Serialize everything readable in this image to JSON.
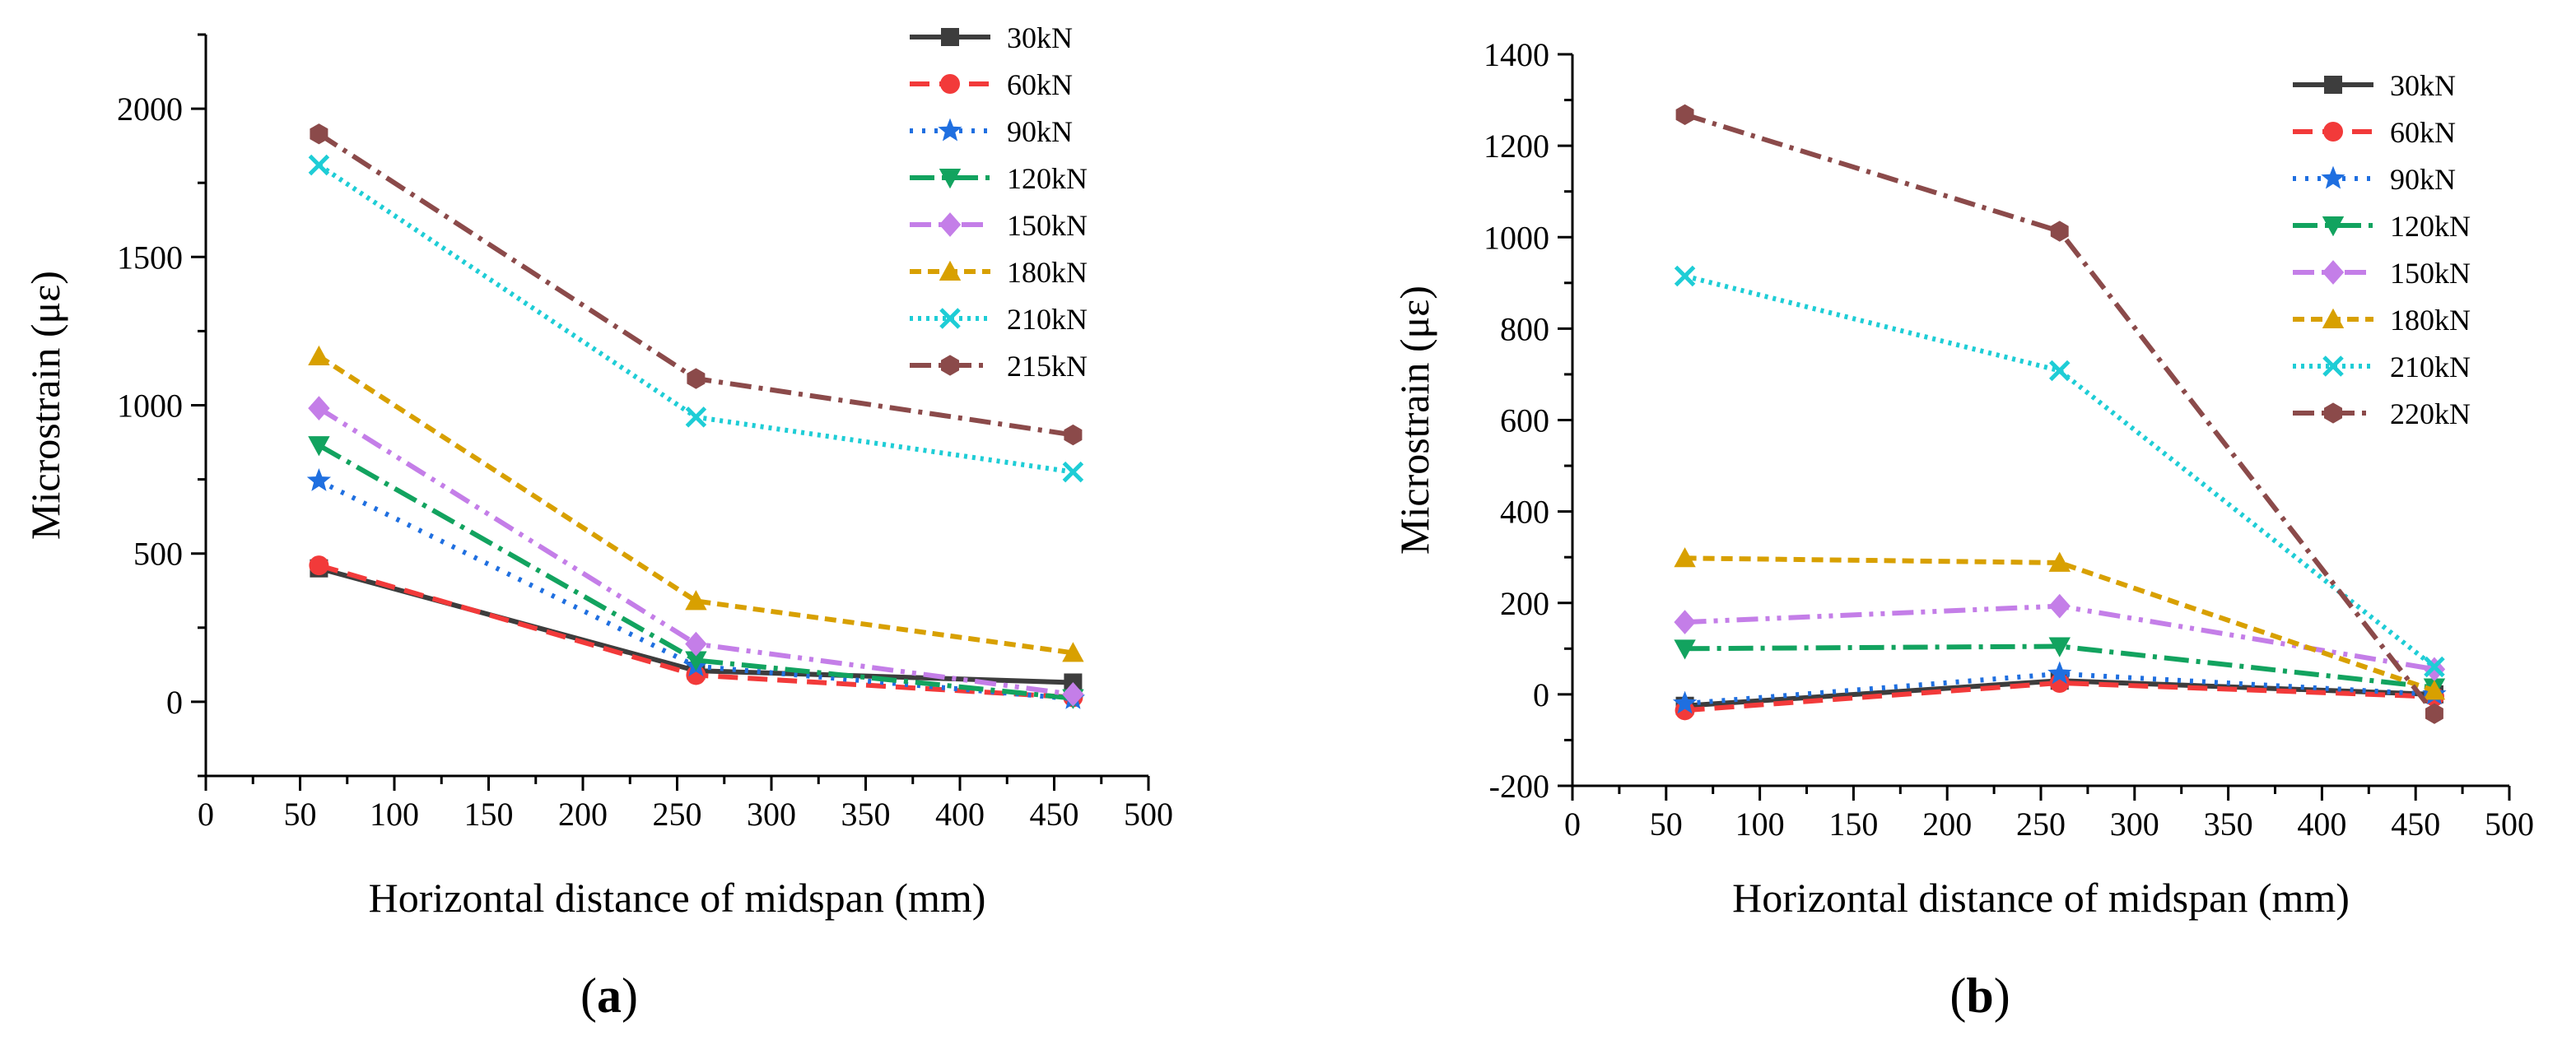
{
  "chart_data": [
    {
      "type": "line",
      "panel_label": {
        "open": "(",
        "letter": "a",
        "close": ")"
      },
      "xlabel": "Horizontal distance of midspan (mm)",
      "ylabel": "Microstrain (με)",
      "xlim": [
        0,
        500
      ],
      "ylim": [
        -250,
        2250
      ],
      "xticks": [
        0,
        50,
        100,
        150,
        200,
        250,
        300,
        350,
        400,
        450,
        500
      ],
      "yticks": [
        0,
        500,
        1000,
        1500,
        2000
      ],
      "grid": false,
      "legend_position": "top-right",
      "x": [
        60,
        260,
        460
      ],
      "series": [
        {
          "name": "30kN",
          "values": [
            450,
            105,
            65
          ]
        },
        {
          "name": "60kN",
          "values": [
            460,
            90,
            15
          ]
        },
        {
          "name": "90kN",
          "values": [
            745,
            120,
            10
          ]
        },
        {
          "name": "120kN",
          "values": [
            865,
            140,
            12
          ]
        },
        {
          "name": "150kN",
          "values": [
            990,
            195,
            25
          ]
        },
        {
          "name": "180kN",
          "values": [
            1165,
            340,
            165
          ]
        },
        {
          "name": "210kN",
          "values": [
            1810,
            960,
            775
          ]
        },
        {
          "name": "215kN",
          "values": [
            1915,
            1090,
            900
          ]
        }
      ]
    },
    {
      "type": "line",
      "panel_label": {
        "open": "(",
        "letter": "b",
        "close": ")"
      },
      "xlabel": "Horizontal distance of midspan (mm)",
      "ylabel": "Microstrain (με)",
      "xlim": [
        0,
        500
      ],
      "ylim": [
        -200,
        1400
      ],
      "xticks": [
        0,
        50,
        100,
        150,
        200,
        250,
        300,
        350,
        400,
        450,
        500
      ],
      "yticks": [
        -200,
        0,
        200,
        400,
        600,
        800,
        1000,
        1200,
        1400
      ],
      "grid": false,
      "legend_position": "top-right",
      "x": [
        60,
        260,
        460
      ],
      "series": [
        {
          "name": "30kN",
          "values": [
            -25,
            30,
            0
          ]
        },
        {
          "name": "60kN",
          "values": [
            -35,
            25,
            -5
          ]
        },
        {
          "name": "90kN",
          "values": [
            -20,
            45,
            0
          ]
        },
        {
          "name": "120kN",
          "values": [
            100,
            105,
            15
          ]
        },
        {
          "name": "150kN",
          "values": [
            158,
            193,
            55
          ]
        },
        {
          "name": "180kN",
          "values": [
            298,
            288,
            8
          ]
        },
        {
          "name": "210kN",
          "values": [
            915,
            708,
            60
          ]
        },
        {
          "name": "220kN",
          "values": [
            1268,
            1013,
            -42
          ]
        }
      ]
    }
  ],
  "styles": [
    {
      "color": "#3d3d3d",
      "dash": "none",
      "marker": "square"
    },
    {
      "color": "#f23a3a",
      "dash": "24 12",
      "marker": "circle"
    },
    {
      "color": "#1f6fe0",
      "dash": "4 11",
      "marker": "star"
    },
    {
      "color": "#12a35f",
      "dash": "30 9 5 9",
      "marker": "triangle-down"
    },
    {
      "color": "#c47ee8",
      "dash": "26 9 5 9 5 9",
      "marker": "diamond"
    },
    {
      "color": "#d8a000",
      "dash": "14 8",
      "marker": "triangle-up"
    },
    {
      "color": "#1ecdd6",
      "dash": "4 6",
      "marker": "x"
    },
    {
      "color": "#8b4a4a",
      "dash": "26 9 5 9",
      "marker": "hexagon"
    }
  ]
}
